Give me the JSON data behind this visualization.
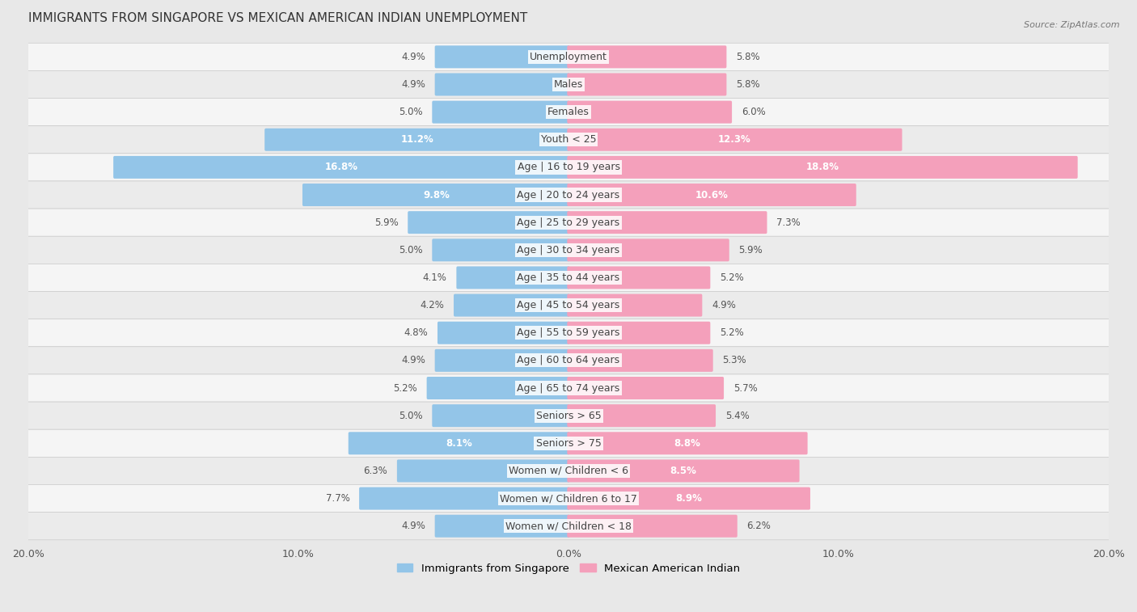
{
  "title": "IMMIGRANTS FROM SINGAPORE VS MEXICAN AMERICAN INDIAN UNEMPLOYMENT",
  "source": "Source: ZipAtlas.com",
  "categories": [
    "Unemployment",
    "Males",
    "Females",
    "Youth < 25",
    "Age | 16 to 19 years",
    "Age | 20 to 24 years",
    "Age | 25 to 29 years",
    "Age | 30 to 34 years",
    "Age | 35 to 44 years",
    "Age | 45 to 54 years",
    "Age | 55 to 59 years",
    "Age | 60 to 64 years",
    "Age | 65 to 74 years",
    "Seniors > 65",
    "Seniors > 75",
    "Women w/ Children < 6",
    "Women w/ Children 6 to 17",
    "Women w/ Children < 18"
  ],
  "left_values": [
    4.9,
    4.9,
    5.0,
    11.2,
    16.8,
    9.8,
    5.9,
    5.0,
    4.1,
    4.2,
    4.8,
    4.9,
    5.2,
    5.0,
    8.1,
    6.3,
    7.7,
    4.9
  ],
  "right_values": [
    5.8,
    5.8,
    6.0,
    12.3,
    18.8,
    10.6,
    7.3,
    5.9,
    5.2,
    4.9,
    5.2,
    5.3,
    5.7,
    5.4,
    8.8,
    8.5,
    8.9,
    6.2
  ],
  "left_color": "#93c5e8",
  "right_color": "#f4a0bb",
  "left_label": "Immigrants from Singapore",
  "right_label": "Mexican American Indian",
  "axis_max": 20.0,
  "bg_color": "#e8e8e8",
  "row_color_even": "#f5f5f5",
  "row_color_odd": "#ebebeb",
  "title_fontsize": 11,
  "label_fontsize": 9,
  "value_fontsize": 8.5,
  "source_fontsize": 8
}
